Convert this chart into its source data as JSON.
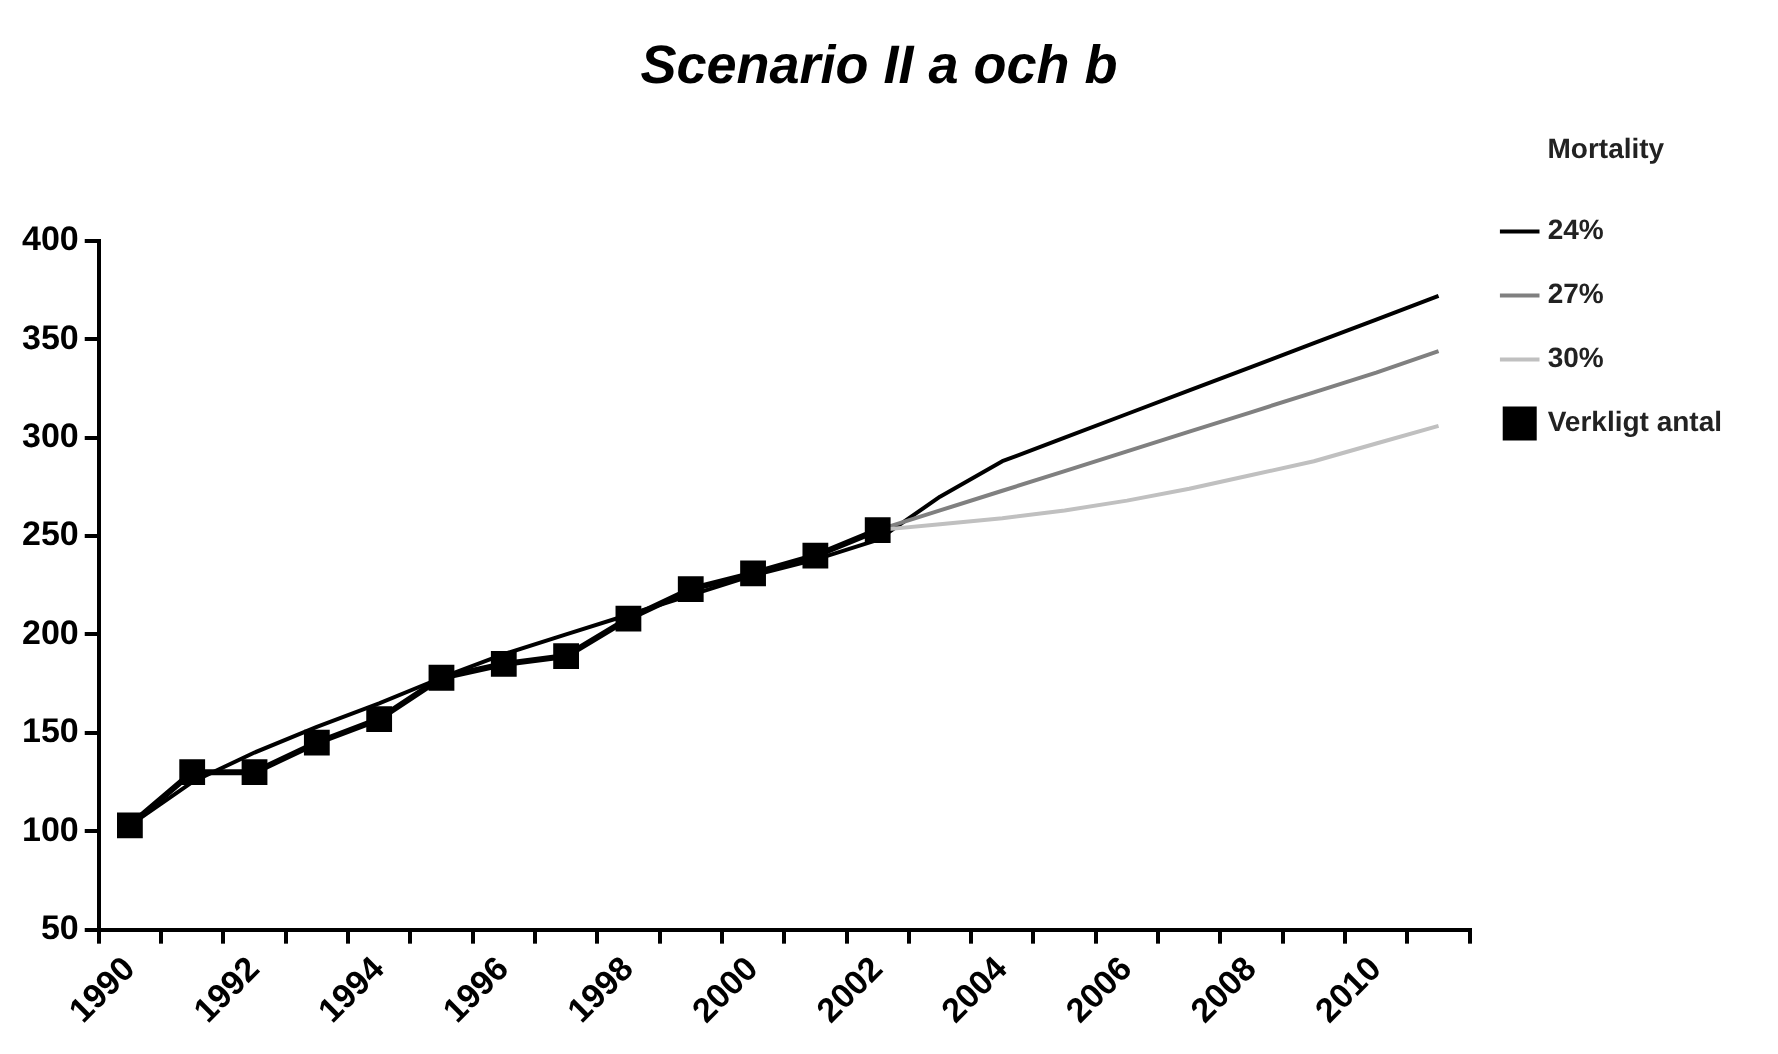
{
  "chart_data": {
    "type": "line",
    "title": "Scenario II a och b",
    "legend_title": "Mortality",
    "legend": "right",
    "categories": [
      "1990",
      null,
      "1992",
      null,
      "1994",
      null,
      "1996",
      null,
      "1998",
      null,
      "2000",
      null,
      "2002",
      null,
      "2004",
      null,
      "2006",
      null,
      "2008",
      null,
      "2010",
      null
    ],
    "ylim": [
      50,
      400
    ],
    "yticks": [
      50,
      100,
      150,
      200,
      250,
      300,
      350,
      400
    ],
    "series": [
      {
        "name": "24%",
        "color": "#000000",
        "marker": "none",
        "values": [
          103,
          125,
          140,
          153,
          165,
          178,
          190,
          200,
          210,
          220,
          230,
          238,
          248,
          270,
          288,
          300,
          312,
          324,
          336,
          348,
          360,
          372
        ]
      },
      {
        "name": "27%",
        "color": "#808080",
        "marker": "none",
        "values": [
          null,
          null,
          null,
          null,
          null,
          null,
          null,
          null,
          null,
          null,
          null,
          null,
          253,
          263,
          273,
          283,
          293,
          303,
          313,
          323,
          333,
          344
        ]
      },
      {
        "name": "30%",
        "color": "#c0c0c0",
        "marker": "none",
        "values": [
          null,
          null,
          null,
          null,
          null,
          null,
          null,
          null,
          null,
          null,
          null,
          null,
          253,
          256,
          259,
          263,
          268,
          274,
          281,
          288,
          297,
          306
        ]
      },
      {
        "name": "Verkligt antal",
        "color": "#000000",
        "marker": "square",
        "values": [
          103,
          130,
          130,
          145,
          157,
          178,
          185,
          189,
          208,
          223,
          231,
          240,
          253,
          null,
          null,
          null,
          null,
          null,
          null,
          null,
          null,
          null
        ]
      }
    ]
  }
}
